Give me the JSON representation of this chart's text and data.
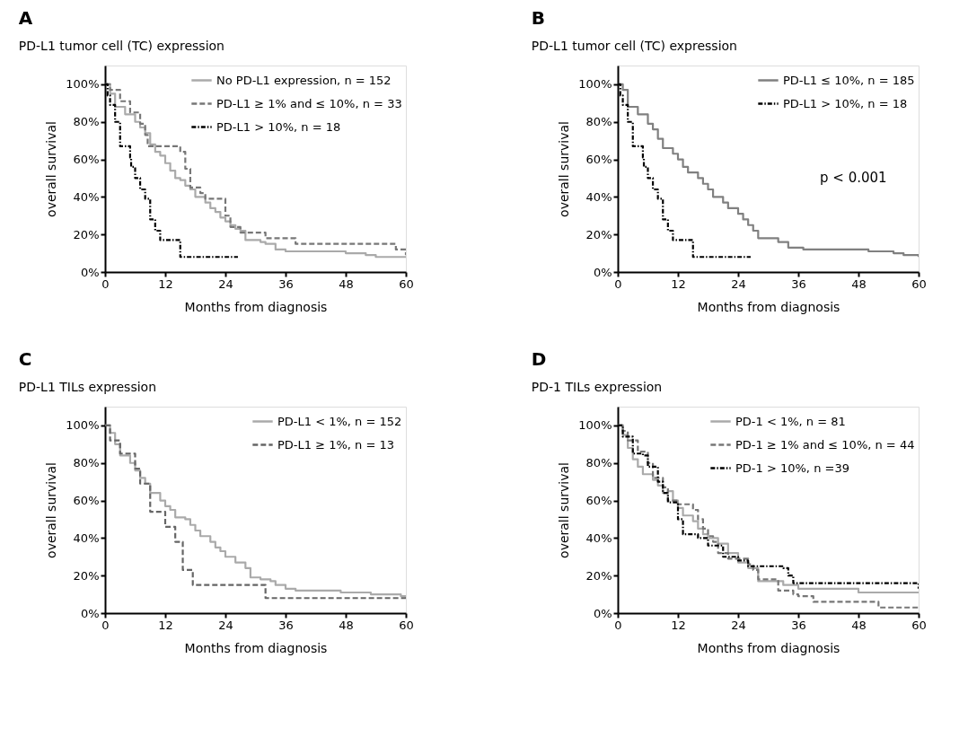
{
  "chart_data": [
    {
      "type": "step",
      "title": "A",
      "subtitle": "PD-L1 tumor cell (TC) expression",
      "xlabel": "Months from diagnosis",
      "ylabel": "overall survival",
      "xlim": [
        0,
        60
      ],
      "xticks": [
        0,
        12,
        24,
        36,
        48,
        60
      ],
      "ylim": [
        0,
        110
      ],
      "yticks": [
        {
          "value": 0,
          "label": "0%"
        },
        {
          "value": 20,
          "label": "20%"
        },
        {
          "value": 40,
          "label": "40%"
        },
        {
          "value": 60,
          "label": "60%"
        },
        {
          "value": 80,
          "label": "80%"
        },
        {
          "value": 100,
          "label": "100%"
        }
      ],
      "grid": false,
      "legend": "top right",
      "marker": "none",
      "series": [
        {
          "name": "No PD-L1 expression, n = 152",
          "color": "#aaaaaa",
          "line_style": "solid",
          "x": [
            0,
            1,
            2,
            4,
            6,
            7,
            8,
            9,
            10,
            11,
            12,
            13,
            14,
            15,
            16,
            17,
            18,
            20,
            21,
            22,
            23,
            24,
            25,
            26,
            27,
            28,
            31,
            32,
            34,
            36,
            48,
            52,
            54,
            60
          ],
          "values": [
            100,
            95,
            88,
            84,
            80,
            77,
            74,
            68,
            64,
            62,
            58,
            54,
            50,
            49,
            46,
            44,
            40,
            37,
            34,
            32,
            29,
            27,
            25,
            23,
            22,
            17,
            16,
            15,
            12,
            11,
            10,
            9,
            8,
            8
          ]
        },
        {
          "name": "PD-L1 ≥ 1% and ≤ 10%, n = 33",
          "color": "#777777",
          "line_style": "dashed",
          "x": [
            0,
            1,
            3,
            5,
            7,
            8,
            8.5,
            15,
            16,
            17,
            19,
            20,
            24,
            25,
            27,
            32,
            38,
            58,
            60
          ],
          "values": [
            100,
            97,
            91,
            85,
            79,
            73,
            67,
            64,
            55,
            45,
            42,
            39,
            30,
            24,
            21,
            18,
            15,
            12,
            9
          ]
        },
        {
          "name": "PD-L1 > 10%, n = 18",
          "color": "#000000",
          "line_style": "dashdot",
          "x": [
            0,
            0.5,
            1,
            2,
            3,
            5,
            5.2,
            6,
            7,
            8,
            9,
            10,
            11,
            15,
            26.5
          ],
          "values": [
            100,
            94,
            89,
            80,
            67,
            61,
            56,
            50,
            44,
            39,
            28,
            22,
            17,
            8,
            8
          ]
        }
      ]
    },
    {
      "type": "step",
      "title": "B",
      "subtitle": "PD-L1 tumor cell (TC) expression",
      "xlabel": "Months from diagnosis",
      "ylabel": "overall survival",
      "xlim": [
        0,
        60
      ],
      "xticks": [
        0,
        12,
        24,
        36,
        48,
        60
      ],
      "ylim": [
        0,
        110
      ],
      "yticks": [
        {
          "value": 0,
          "label": "0%"
        },
        {
          "value": 20,
          "label": "20%"
        },
        {
          "value": 40,
          "label": "40%"
        },
        {
          "value": 60,
          "label": "60%"
        },
        {
          "value": 80,
          "label": "80%"
        },
        {
          "value": 100,
          "label": "100%"
        }
      ],
      "grid": false,
      "legend": "top right",
      "marker": "none",
      "annotations": [
        "p < 0.001"
      ],
      "series": [
        {
          "name": "PD-L1 ≤ 10%, n = 185",
          "color": "#808080",
          "line_style": "solid",
          "x": [
            0,
            1,
            2,
            4,
            6,
            7,
            8,
            9,
            11,
            12,
            13,
            14,
            16,
            17,
            18,
            19,
            21,
            22,
            24,
            25,
            26,
            27,
            28,
            32,
            34,
            37,
            50,
            55,
            57,
            60
          ],
          "values": [
            100,
            97,
            88,
            84,
            79,
            76,
            71,
            66,
            63,
            60,
            56,
            53,
            50,
            47,
            44,
            40,
            37,
            34,
            31,
            28,
            25,
            22,
            18,
            16,
            13,
            12,
            11,
            10,
            9,
            8
          ]
        },
        {
          "name": "PD-L1 > 10%, n  = 18",
          "color": "#000000",
          "line_style": "dashdot",
          "x": [
            0,
            0.5,
            1,
            2,
            3,
            5,
            5.2,
            6,
            7,
            8,
            9,
            10,
            11,
            15,
            26.5
          ],
          "values": [
            100,
            94,
            89,
            80,
            67,
            61,
            56,
            50,
            44,
            39,
            28,
            22,
            17,
            8,
            8
          ]
        }
      ]
    },
    {
      "type": "step",
      "title": "C",
      "subtitle": "PD-L1 TILs expression",
      "xlabel": "Months from diagnosis",
      "ylabel": "overall survival",
      "xlim": [
        0,
        60
      ],
      "xticks": [
        0,
        12,
        24,
        36,
        48,
        60
      ],
      "ylim": [
        0,
        110
      ],
      "yticks": [
        {
          "value": 0,
          "label": "0%"
        },
        {
          "value": 20,
          "label": "20%"
        },
        {
          "value": 40,
          "label": "40%"
        },
        {
          "value": 60,
          "label": "60%"
        },
        {
          "value": 80,
          "label": "80%"
        },
        {
          "value": 100,
          "label": "100%"
        }
      ],
      "grid": false,
      "legend": "top right",
      "marker": "none",
      "series": [
        {
          "name": "PD-L1 < 1%, n = 152",
          "color": "#aaaaaa",
          "line_style": "solid",
          "x": [
            0,
            1,
            2,
            3,
            5,
            6,
            7,
            8,
            9,
            11,
            12,
            13,
            14,
            16,
            17,
            18,
            19,
            21,
            22,
            23,
            24,
            26,
            28,
            29,
            31,
            33,
            34,
            36,
            38,
            47,
            53,
            59,
            60
          ],
          "values": [
            100,
            96,
            90,
            84,
            80,
            76,
            72,
            69,
            64,
            60,
            57,
            55,
            51,
            50,
            47,
            44,
            41,
            38,
            35,
            33,
            30,
            27,
            24,
            19,
            18,
            17,
            15,
            13,
            12,
            11,
            10,
            9,
            8
          ]
        },
        {
          "name": "PD-L1 ≥ 1%, n = 13",
          "color": "#666666",
          "line_style": "dashed",
          "x": [
            0,
            1,
            3,
            6,
            7,
            9,
            12,
            14,
            15.5,
            17.5,
            32,
            60
          ],
          "values": [
            100,
            92,
            85,
            77,
            69,
            54,
            46,
            38,
            23,
            15,
            8,
            8
          ]
        }
      ]
    },
    {
      "type": "step",
      "title": "D",
      "subtitle": "PD-1 TILs expression",
      "xlabel": "Months from diagnosis",
      "ylabel": "overall survival",
      "xlim": [
        0,
        60
      ],
      "xticks": [
        0,
        12,
        24,
        36,
        48,
        60
      ],
      "ylim": [
        0,
        110
      ],
      "yticks": [
        {
          "value": 0,
          "label": "0%"
        },
        {
          "value": 20,
          "label": "20%"
        },
        {
          "value": 40,
          "label": "40%"
        },
        {
          "value": 60,
          "label": "60%"
        },
        {
          "value": 80,
          "label": "80%"
        },
        {
          "value": 100,
          "label": "100%"
        }
      ],
      "grid": false,
      "legend": "top right",
      "marker": "none",
      "series": [
        {
          "name": "PD-1 < 1%, n = 81",
          "color": "#aaaaaa",
          "line_style": "solid",
          "x": [
            0,
            1,
            2,
            3,
            4,
            5,
            7,
            8,
            9,
            10,
            11,
            12,
            13,
            15,
            16,
            17,
            18,
            20,
            22,
            24,
            26,
            28,
            33,
            36,
            48,
            60
          ],
          "values": [
            100,
            95,
            88,
            82,
            78,
            74,
            71,
            68,
            64,
            65,
            60,
            56,
            52,
            49,
            45,
            42,
            40,
            37,
            32,
            27,
            24,
            17,
            15,
            13,
            11,
            11
          ]
        },
        {
          "name": "PD-1 ≥ 1% and ≤ 10%, n = 44",
          "color": "#777777",
          "line_style": "dashed",
          "x": [
            0,
            1,
            2,
            4,
            6,
            7,
            9,
            10,
            12,
            15,
            16,
            17,
            18,
            19,
            20,
            22,
            26,
            27,
            28,
            32,
            35,
            36,
            39,
            52,
            60
          ],
          "values": [
            100,
            97,
            92,
            86,
            80,
            72,
            67,
            60,
            58,
            55,
            50,
            45,
            41,
            38,
            32,
            29,
            26,
            23,
            18,
            12,
            10,
            9,
            6,
            3,
            3
          ]
        },
        {
          "name": "PD-1 > 10%, n =39",
          "color": "#000000",
          "line_style": "dashdot",
          "x": [
            0,
            1,
            3,
            5,
            6,
            8,
            9,
            10,
            12,
            13,
            15,
            16,
            18,
            21,
            24,
            26,
            33,
            34,
            35,
            57,
            60
          ],
          "values": [
            100,
            94,
            85,
            84,
            78,
            70,
            64,
            59,
            50,
            42,
            42,
            40,
            36,
            30,
            28,
            25,
            24,
            20,
            16,
            16,
            13
          ]
        }
      ]
    }
  ]
}
